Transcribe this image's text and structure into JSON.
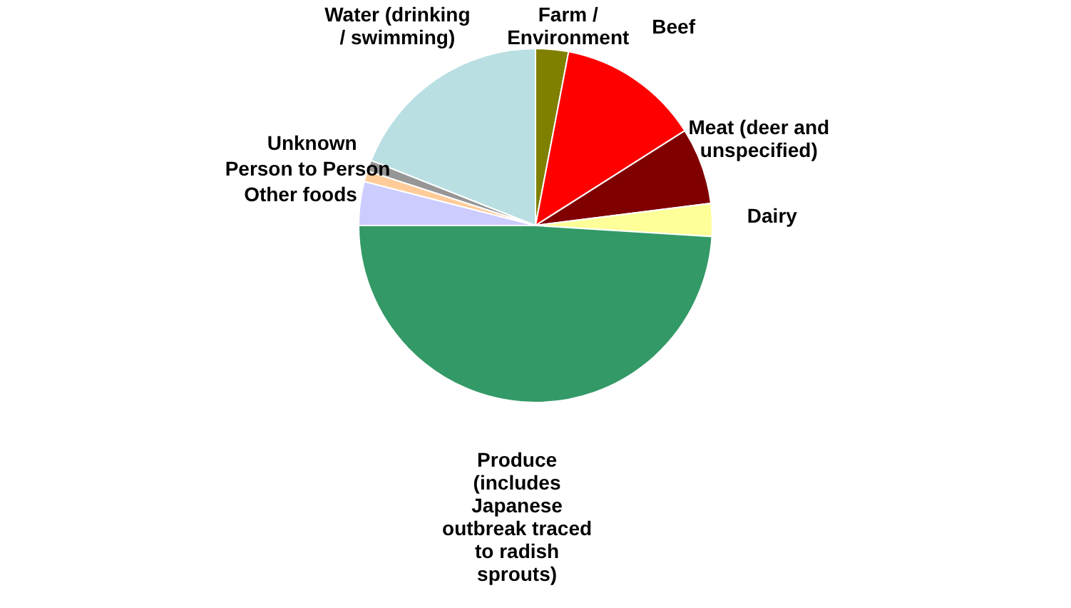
{
  "chart_data": {
    "type": "pie",
    "categories": [
      "Farm / Environment",
      "Beef",
      "Meat (deer and unspecified)",
      "Dairy",
      "Produce (includes Japanese outbreak traced to radish sprouts)",
      "Other foods",
      "Person to Person",
      "Unknown",
      "Water (drinking / swimming)"
    ],
    "values": [
      3,
      13,
      7,
      3,
      49,
      4,
      1,
      1,
      19
    ],
    "colors": [
      "#808000",
      "#ff0000",
      "#800000",
      "#ffff99",
      "#339966",
      "#ccccff",
      "#ffcc99",
      "#969696",
      "#b9dfe3"
    ]
  }
}
